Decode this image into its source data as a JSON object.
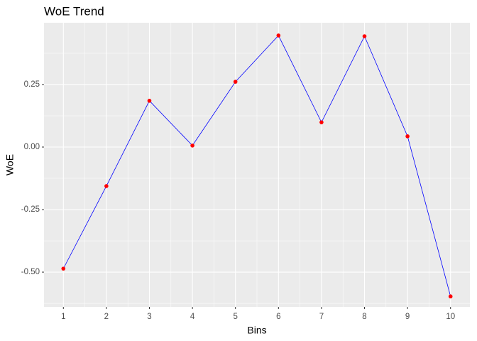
{
  "chart_data": {
    "type": "line",
    "title": "WoE Trend",
    "x_label": "Bins",
    "y_label": "WoE",
    "x": [
      1,
      2,
      3,
      4,
      5,
      6,
      7,
      8,
      9,
      10
    ],
    "series": [
      {
        "line_color": "#0000ff",
        "color": "#ff0000",
        "values": [
          -0.486,
          -0.156,
          0.185,
          0.006,
          0.261,
          0.446,
          0.099,
          0.443,
          0.043,
          -0.597
        ]
      }
    ],
    "xlim": [
      0.55,
      10.45
    ],
    "xticks": [
      1,
      2,
      3,
      4,
      5,
      6,
      7,
      8,
      9,
      10
    ],
    "ylim": [
      -0.639,
      0.497
    ],
    "yticks": [
      {
        "value": -0.5,
        "label": "-0.50"
      },
      {
        "value": -0.25,
        "label": "-0.25"
      },
      {
        "value": 0,
        "label": "0.00"
      },
      {
        "value": 0.25,
        "label": "0.25"
      }
    ],
    "grid": true
  }
}
